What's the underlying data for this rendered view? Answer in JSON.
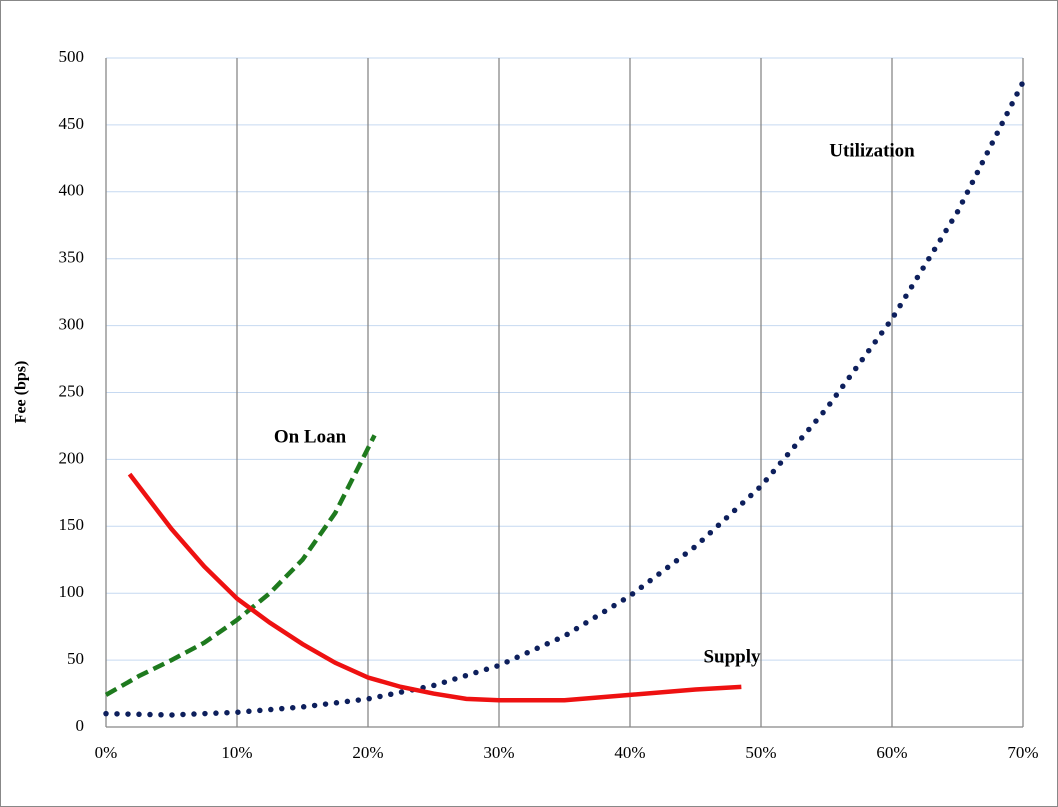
{
  "chart_data": {
    "type": "line",
    "ylabel": "Fee (bps)",
    "xlim": [
      0,
      70
    ],
    "xticks": [
      {
        "value": 0,
        "label": "0%"
      },
      {
        "value": 10,
        "label": "10%"
      },
      {
        "value": 20,
        "label": "20%"
      },
      {
        "value": 30,
        "label": "30%"
      },
      {
        "value": 40,
        "label": "40%"
      },
      {
        "value": 50,
        "label": "50%"
      },
      {
        "value": 60,
        "label": "60%"
      },
      {
        "value": 70,
        "label": "70%"
      }
    ],
    "ylim": [
      0,
      500
    ],
    "yticks": [
      0,
      50,
      100,
      150,
      200,
      250,
      300,
      350,
      400,
      450,
      500
    ],
    "grid": true,
    "series": [
      {
        "name": "Utilization",
        "color": "#0d1f5c",
        "style": "dotted",
        "x": [
          0,
          5,
          10,
          15,
          20,
          25,
          30,
          35,
          40,
          45,
          50,
          55,
          60,
          65,
          70
        ],
        "values": [
          10,
          9,
          11,
          15,
          21,
          31,
          46,
          68,
          98,
          135,
          180,
          238,
          305,
          385,
          482
        ]
      },
      {
        "name": "On Loan",
        "color": "#1e7a1e",
        "style": "dashed",
        "x": [
          0,
          2.5,
          5,
          7.5,
          10,
          12.5,
          15,
          17.5,
          20.5
        ],
        "values": [
          24,
          38,
          50,
          63,
          80,
          100,
          125,
          160,
          218
        ]
      },
      {
        "name": "Supply",
        "color": "#ee1111",
        "style": "solid",
        "x": [
          1.8,
          5,
          7.5,
          10,
          12.5,
          15,
          17.5,
          20,
          22.5,
          25,
          27.5,
          30,
          35,
          40,
          45,
          48.5
        ],
        "values": [
          189,
          148,
          120,
          96,
          78,
          62,
          48,
          37,
          30,
          25,
          21,
          20,
          20,
          24,
          28,
          30
        ]
      }
    ]
  }
}
